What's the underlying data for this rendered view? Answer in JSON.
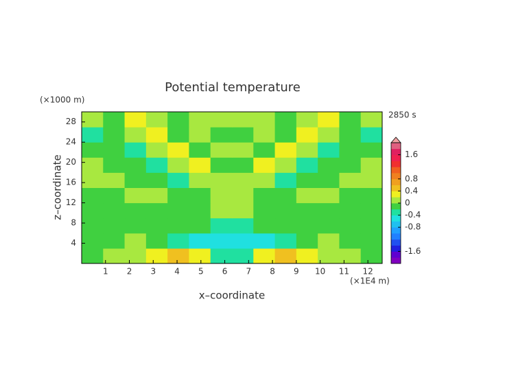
{
  "chart_data": {
    "type": "contour",
    "title": "Potential temperature",
    "y_unit": "(×1000 m)",
    "x_unit": "(×1E4 m)",
    "time_label": "2850 s",
    "xlabel": "x–coordinate",
    "ylabel": "z–coordinate",
    "xlim": [
      0,
      12.6
    ],
    "ylim": [
      0,
      30
    ],
    "xticks": [
      1,
      2,
      3,
      4,
      5,
      6,
      7,
      8,
      9,
      10,
      11,
      12
    ],
    "yticks": [
      4,
      8,
      12,
      16,
      20,
      24,
      28
    ],
    "clim": [
      -2,
      2
    ],
    "cticks": [
      1.6,
      0.8,
      0.4,
      0,
      -0.4,
      -0.8,
      -1.6
    ],
    "colors": [
      "#8000c0",
      "#6000d0",
      "#2020e0",
      "#2050f0",
      "#2080ff",
      "#20a0ff",
      "#20c0f0",
      "#20e0e0",
      "#20e0a0",
      "#40d040",
      "#a8e840",
      "#f0f020",
      "#f0c020",
      "#f0a020",
      "#f08020",
      "#f06020",
      "#f03030",
      "#f02050",
      "#e02060",
      "#e06080"
    ],
    "z": [
      [
        -0.1,
        0.1,
        0.1,
        0.3,
        0.5,
        0.3,
        -0.3,
        -0.3,
        0.3,
        0.5,
        0.3,
        0.1,
        0.1,
        -0.1
      ],
      [
        -0.1,
        -0.1,
        0.1,
        -0.1,
        -0.3,
        -0.5,
        -0.5,
        -0.5,
        -0.5,
        -0.3,
        -0.1,
        0.1,
        -0.1,
        -0.1
      ],
      [
        -0.1,
        -0.1,
        -0.1,
        -0.1,
        -0.1,
        -0.1,
        -0.3,
        -0.3,
        -0.1,
        -0.1,
        -0.1,
        -0.1,
        -0.1,
        -0.1
      ],
      [
        -0.1,
        -0.1,
        -0.1,
        -0.1,
        -0.1,
        -0.1,
        0.1,
        0.1,
        -0.1,
        -0.1,
        -0.1,
        -0.1,
        -0.1,
        -0.1
      ],
      [
        -0.1,
        -0.1,
        0.1,
        0.1,
        -0.1,
        -0.1,
        0.1,
        0.1,
        -0.1,
        -0.1,
        0.1,
        0.1,
        -0.1,
        -0.1
      ],
      [
        0.1,
        0.1,
        -0.1,
        -0.1,
        -0.3,
        0.1,
        0.1,
        0.1,
        0.1,
        -0.3,
        -0.1,
        -0.1,
        0.1,
        0.1
      ],
      [
        0.1,
        -0.1,
        -0.1,
        -0.3,
        0.1,
        0.3,
        -0.1,
        -0.1,
        0.3,
        0.1,
        -0.3,
        -0.1,
        -0.1,
        0.1
      ],
      [
        -0.1,
        -0.1,
        -0.3,
        0.1,
        0.3,
        -0.1,
        0.1,
        0.1,
        -0.1,
        0.3,
        0.1,
        -0.3,
        -0.1,
        -0.1
      ],
      [
        -0.3,
        -0.1,
        0.1,
        0.3,
        -0.1,
        0.1,
        -0.1,
        -0.1,
        0.1,
        -0.1,
        0.3,
        0.1,
        -0.1,
        -0.3
      ],
      [
        0.1,
        -0.1,
        0.3,
        0.1,
        -0.1,
        0.1,
        0.1,
        0.1,
        0.1,
        -0.1,
        0.1,
        0.3,
        -0.1,
        0.1
      ]
    ]
  }
}
